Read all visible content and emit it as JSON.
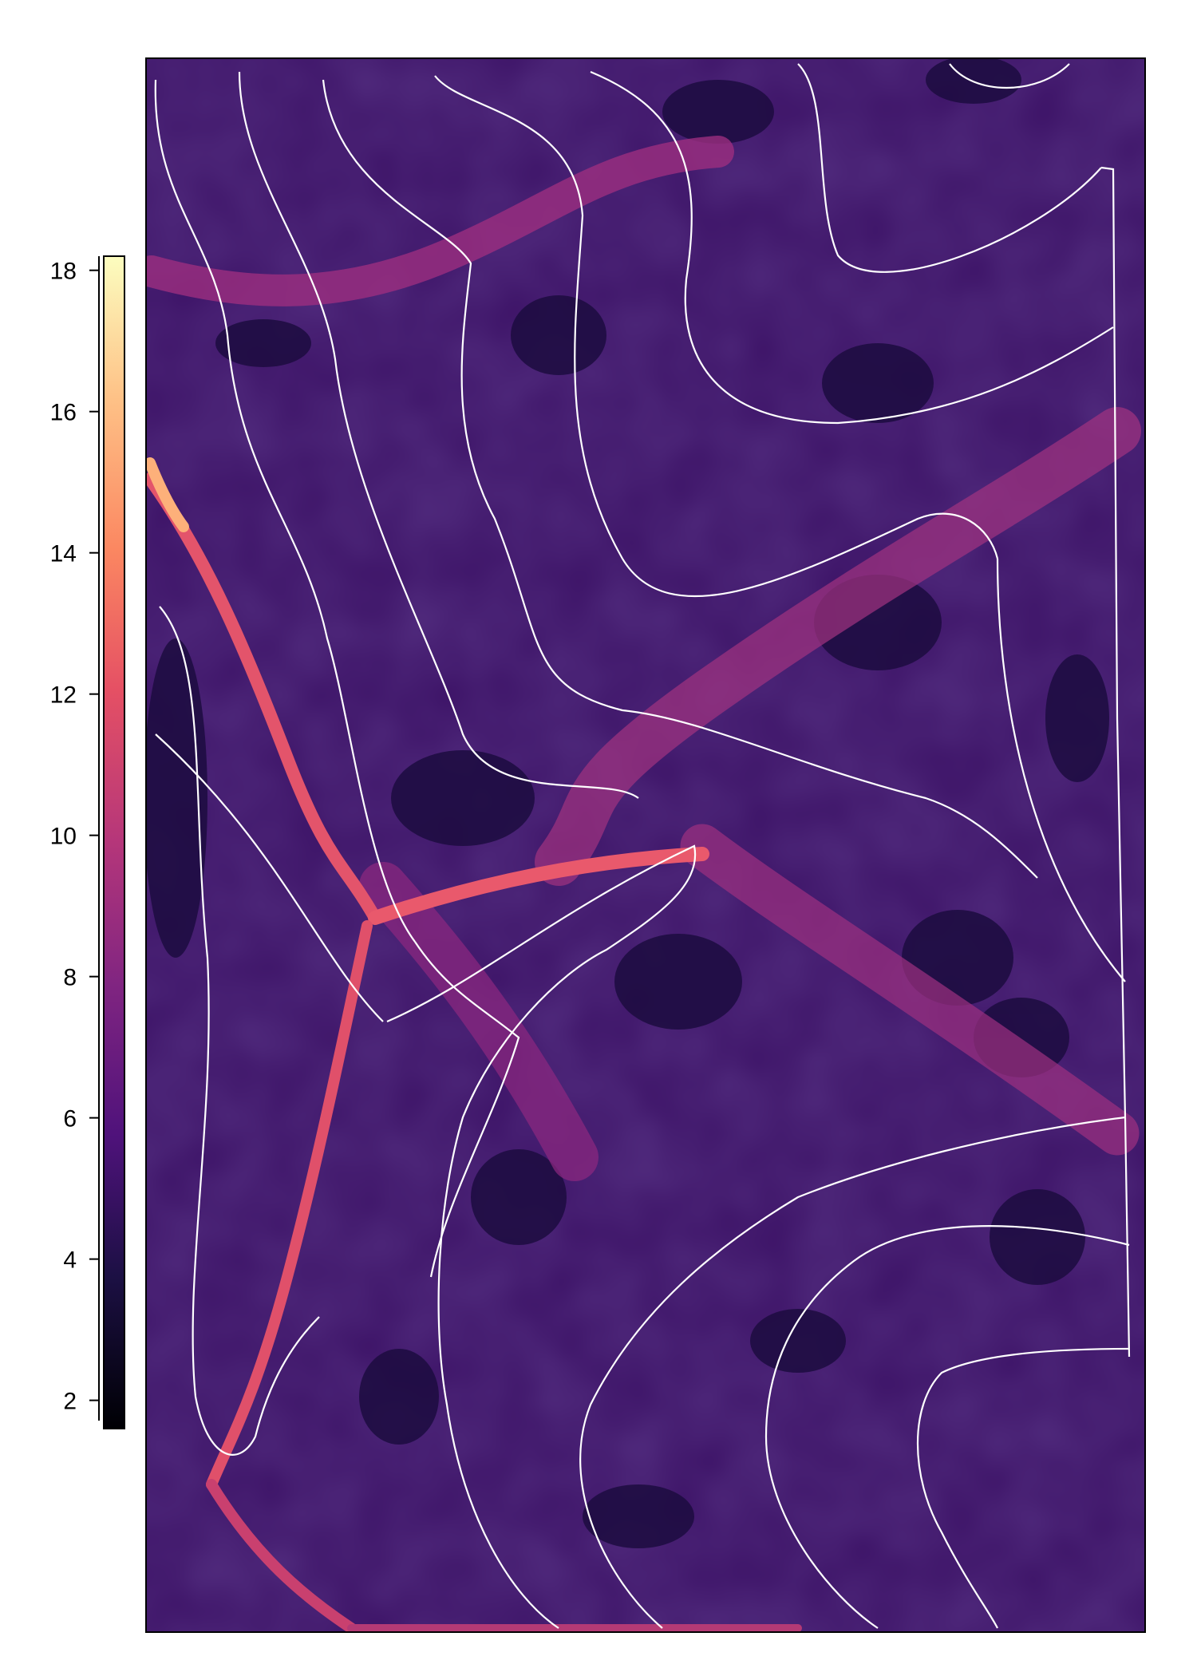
{
  "chart_data": {
    "type": "heatmap",
    "title": "",
    "xlabel": "",
    "ylabel": "",
    "colormap": "magma",
    "color_range": [
      1.6,
      18.2
    ],
    "colorbar_ticks": [
      "2",
      "4",
      "6",
      "8",
      "10",
      "12",
      "14",
      "16",
      "18"
    ],
    "colorbar_tick_values": [
      2,
      4,
      6,
      8,
      10,
      12,
      14,
      16,
      18
    ],
    "grid": false,
    "legend_placement": "left",
    "overlay": "white contour lines",
    "colors": {
      "low": "#000004",
      "mid_low": "#3b0f70",
      "mid": "#8c2981",
      "mid_high": "#de4968",
      "high": "#fe9f6d",
      "top": "#fcfdbf",
      "contour": "#ffffff"
    }
  }
}
